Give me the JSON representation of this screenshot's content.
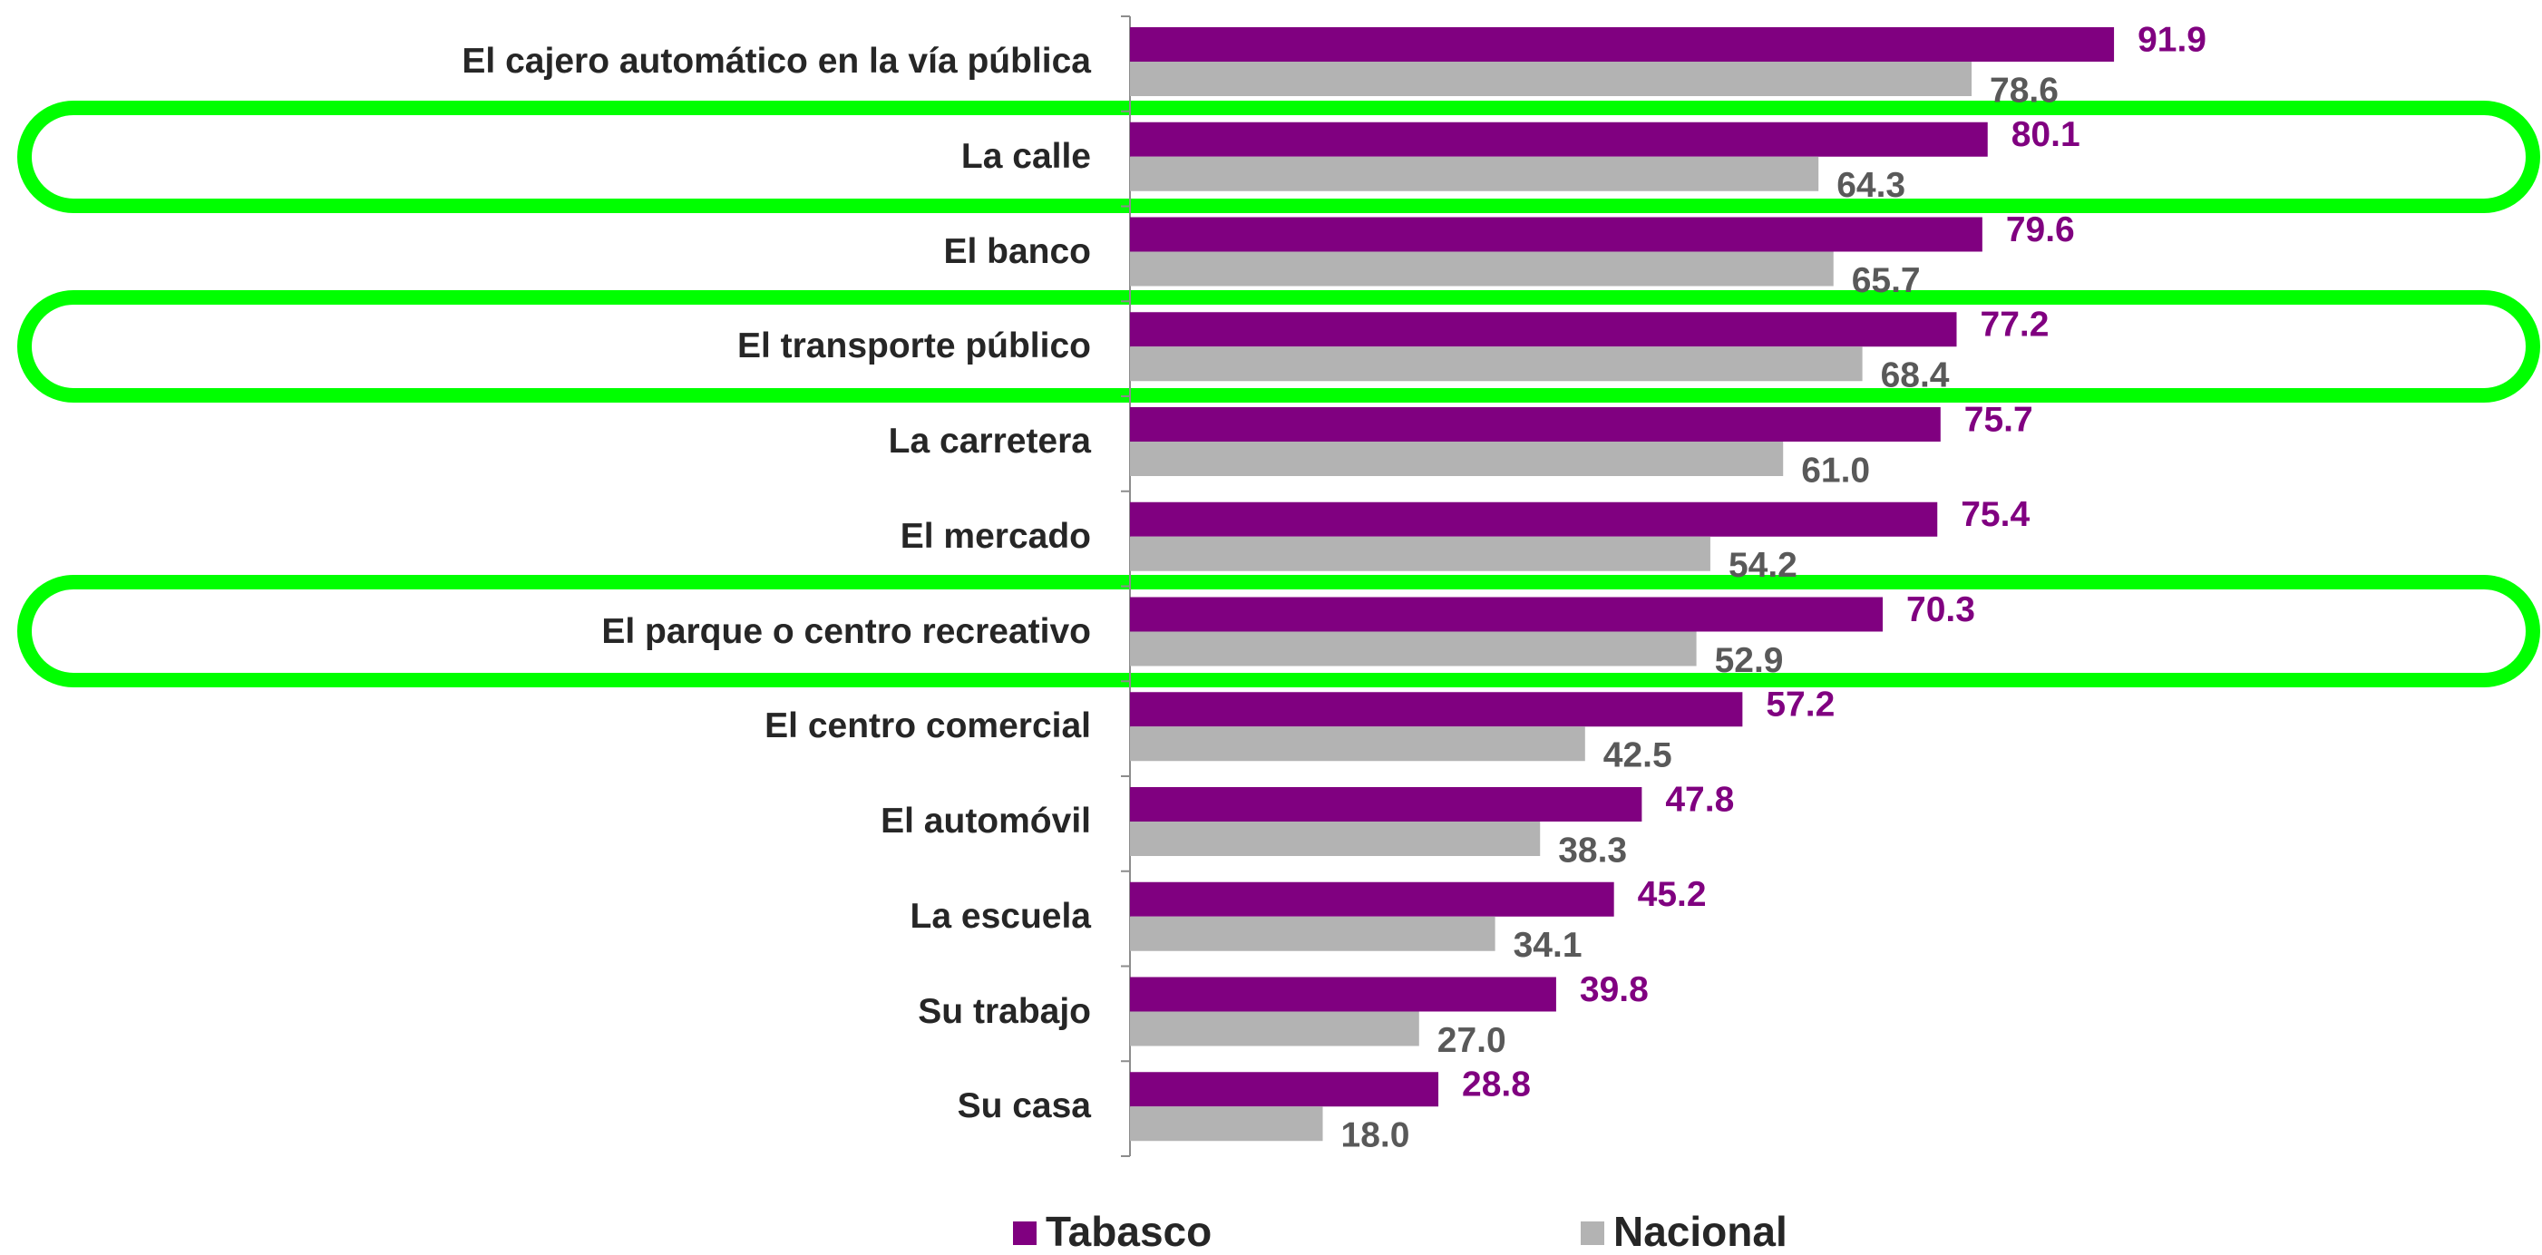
{
  "chart_data": {
    "type": "bar",
    "orientation": "horizontal",
    "categories": [
      "El cajero automático en la vía pública",
      "La calle",
      "El banco",
      "El transporte público",
      "La carretera",
      "El mercado",
      "El parque o centro recreativo",
      "El centro comercial",
      "El automóvil",
      "La escuela",
      "Su trabajo",
      "Su casa"
    ],
    "series": [
      {
        "name": "Tabasco",
        "color": "#800080",
        "values": [
          91.9,
          80.1,
          79.6,
          77.2,
          75.7,
          75.4,
          70.3,
          57.2,
          47.8,
          45.2,
          39.8,
          28.8
        ],
        "value_labels": [
          "91.9",
          "80.1",
          "79.6",
          "77.2",
          "75.7",
          "75.4",
          "70.3",
          "57.2",
          "47.8",
          "45.2",
          "39.8",
          "28.8"
        ]
      },
      {
        "name": "Nacional",
        "color": "#b3b3b3",
        "values": [
          78.6,
          64.3,
          65.7,
          68.4,
          61.0,
          54.2,
          52.9,
          42.5,
          38.3,
          34.1,
          27.0,
          18.0
        ],
        "value_labels": [
          "78.6",
          "64.3",
          "65.7",
          "68.4",
          "61.0",
          "54.2",
          "52.9",
          "42.5",
          "38.3",
          "34.1",
          "27.0",
          "18.0"
        ]
      }
    ],
    "xlim": [
      0,
      100
    ],
    "legend": "bottom"
  }
}
